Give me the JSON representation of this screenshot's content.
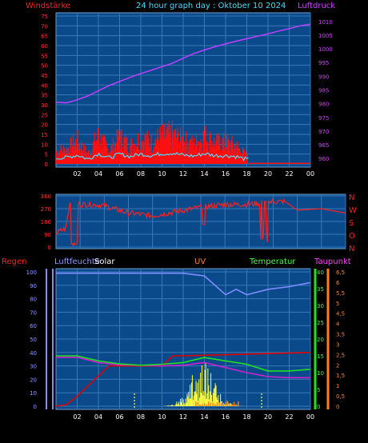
{
  "header": {
    "wind_label": "Windstärke",
    "title": "24 hour graph day : Oktober 10 2024",
    "pressure_label": "Luftdruck"
  },
  "panel2": {
    "compass_labels": [
      "N",
      "W",
      "S",
      "O",
      "N"
    ]
  },
  "panel3": {
    "rain_label": "Regen",
    "humidity_label": "Luftfeuchte",
    "solar_label": "Solar",
    "uv_label": "UV",
    "temperature_label": "Temperatur",
    "dewpoint_label": "Taupunkt"
  },
  "colors": {
    "panel_bg": "#0a4a8a",
    "grid": "#3a78b8",
    "wind": "#ff1010",
    "gust_avg": "#40e0ff",
    "pressure": "#c040ff",
    "direction": "#ff2020",
    "rain": "#e00000",
    "humidity": "#7f8cff",
    "solar": "#ffff40",
    "uv": "#ff8020",
    "temperature": "#20e020",
    "dewpoint": "#d020d0"
  },
  "chart_data": [
    {
      "type": "line",
      "x_ticks": [
        "02",
        "04",
        "06",
        "08",
        "10",
        "12",
        "14",
        "16",
        "18",
        "20",
        "22",
        "00"
      ],
      "y_left_ticks": [
        0,
        5,
        10,
        15,
        20,
        25,
        30,
        35,
        40,
        45,
        50,
        55,
        60,
        65,
        70,
        75
      ],
      "y_right_ticks": [
        960,
        965,
        970,
        975,
        980,
        985,
        990,
        995,
        1000,
        1005,
        1010
      ],
      "ylim_left": [
        0,
        75
      ],
      "ylim_right": [
        958,
        1012
      ],
      "series": [
        {
          "name": "Luftdruck",
          "axis": "right",
          "x": [
            0,
            1,
            2,
            3,
            4,
            5,
            6,
            7,
            8,
            9,
            10,
            11,
            12,
            13,
            14,
            15,
            16,
            17,
            18,
            19,
            20,
            21,
            22,
            23,
            24
          ],
          "values": [
            980.5,
            980.3,
            981.4,
            982.8,
            984.7,
            986.6,
            988.1,
            989.6,
            991.0,
            992.2,
            993.5,
            994.8,
            996.6,
            998.3,
            999.6,
            1000.8,
            1001.8,
            1002.8,
            1003.7,
            1004.6,
            1005.5,
            1006.5,
            1007.4,
            1008.4,
            1009.0
          ]
        },
        {
          "name": "Windstärke",
          "axis": "left",
          "x": [
            0,
            1,
            2,
            3,
            4,
            5,
            6,
            7,
            8,
            9,
            10,
            11,
            12,
            13,
            14,
            15,
            16,
            17,
            18,
            19,
            20,
            21,
            22,
            23,
            24
          ],
          "values": [
            8,
            9,
            14,
            6,
            17,
            8,
            16,
            11,
            16,
            13,
            17,
            18,
            14,
            12,
            17,
            13,
            13,
            11,
            5,
            1,
            1,
            0,
            0,
            1,
            0
          ]
        }
      ]
    },
    {
      "type": "line",
      "x_ticks": [],
      "y_ticks": [
        0,
        90,
        180,
        270,
        360
      ],
      "ylim": [
        0,
        360
      ],
      "series": [
        {
          "name": "",
          "x": [
            0,
            0.8,
            1.2,
            2,
            3,
            4,
            6,
            8,
            10,
            12,
            14,
            16,
            18,
            19,
            20,
            22,
            24
          ],
          "values": [
            100,
            130,
            330,
            300,
            300,
            290,
            240,
            220,
            250,
            280,
            300,
            300,
            320,
            320,
            260,
            270,
            240
          ]
        }
      ]
    },
    {
      "type": "line",
      "x_ticks": [
        "02",
        "04",
        "06",
        "08",
        "10",
        "12",
        "14",
        "16",
        "18",
        "20",
        "22",
        "00"
      ],
      "y_left_ticks": [
        0,
        10,
        20,
        30,
        40,
        50,
        60,
        70,
        80,
        90,
        100
      ],
      "y_temp_ticks": [
        0,
        5,
        10,
        15,
        20,
        25,
        30,
        35,
        40
      ],
      "y_uv_ticks": [
        0,
        0.5,
        1,
        1.5,
        2,
        2.5,
        3,
        3.5,
        4,
        4.5,
        5,
        5.5,
        6,
        6.5
      ],
      "series": [
        {
          "name": "Luftfeuchte",
          "axis": "left",
          "x": [
            0,
            2,
            4,
            6,
            8,
            10,
            12,
            14,
            16,
            17,
            18,
            20,
            22,
            24
          ],
          "values": [
            99,
            99,
            99,
            99,
            99,
            99,
            99,
            97,
            83,
            87,
            83,
            87,
            89,
            92
          ]
        },
        {
          "name": "Temperatur",
          "axis": "temp",
          "x": [
            0,
            2,
            4,
            6,
            8,
            10,
            12,
            14,
            16,
            18,
            20,
            22,
            24
          ],
          "values": [
            15,
            15,
            13.5,
            12.6,
            12.2,
            12.5,
            13,
            14.5,
            13.5,
            12.5,
            10.5,
            10.5,
            11
          ]
        },
        {
          "name": "Taupunkt",
          "axis": "temp",
          "x": [
            0,
            2,
            4,
            6,
            8,
            10,
            12,
            14,
            16,
            18,
            20,
            22,
            24
          ],
          "values": [
            14.5,
            14.6,
            13,
            12.3,
            12.2,
            12,
            12.2,
            13,
            11.5,
            10,
            8.8,
            8.5,
            8.5
          ]
        },
        {
          "name": "Regen",
          "axis": "temp",
          "x": [
            0,
            1,
            2,
            3,
            4,
            5,
            10,
            11,
            12,
            24
          ],
          "values": [
            0,
            0.5,
            3,
            6,
            9,
            12,
            12,
            15,
            15,
            16
          ]
        }
      ]
    }
  ]
}
